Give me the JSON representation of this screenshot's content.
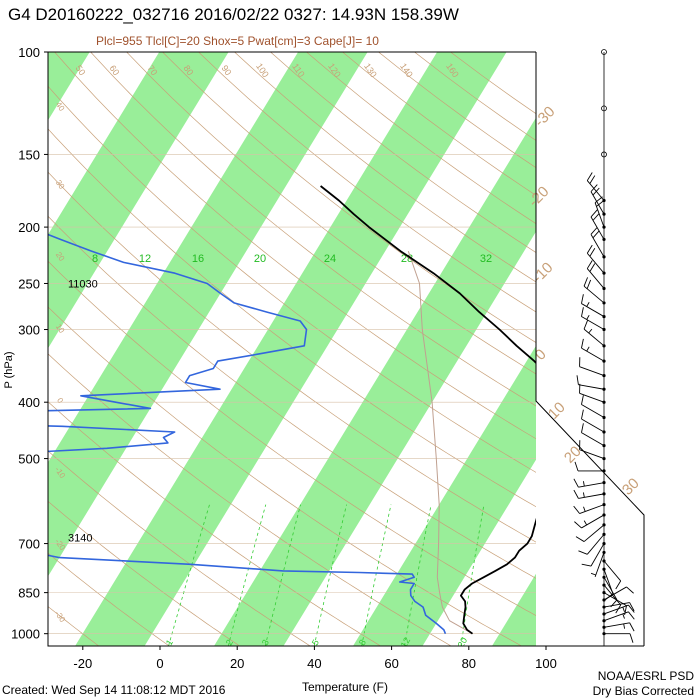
{
  "title": "G4 D20160222_032716 2016/02/22 0327: 14.93N 158.39W",
  "subtitle": "Plcl=955 Tlcl[C]=20 Shox=5 Pwat[cm]=3 Cape[J]= 10",
  "footer": {
    "created": "Created: Wed Sep 14 11:08:12 MDT 2016",
    "credit_line1": "NOAA/ESRL PSD",
    "credit_line2": "Dry Bias Corrected"
  },
  "colors": {
    "temperature": "#000000",
    "dewpoint": "#3366dd",
    "isotherm_band": "#99ee99",
    "dry_adiabat": "#c8a078",
    "mixing_ratio": "#33cc33",
    "parcel": "#c0a090",
    "wind_barb": "#000000"
  },
  "chart_data": {
    "type": "skew-t",
    "xlabel": "Temperature (F)",
    "ylabel": "P (hPa)",
    "x_ticks": [
      "-20",
      "0",
      "20",
      "40",
      "60",
      "80",
      "100"
    ],
    "y_ticks": [
      "100",
      "150",
      "200",
      "250",
      "300",
      "400",
      "500",
      "700",
      "850",
      "1000"
    ],
    "xlim": [
      -29,
      116
    ],
    "ylim": [
      1050,
      100
    ],
    "height_labels": [
      {
        "text": "11030",
        "p": 250
      },
      {
        "text": "3140",
        "p": 700
      }
    ],
    "mixing_ratio_labels": [
      "8",
      "12",
      "16",
      "20",
      "24",
      "28",
      "32"
    ],
    "mixing_ratio_bottom_labels": [
      "1",
      "2",
      "3",
      "5",
      "8",
      "12",
      "20"
    ],
    "dry_adiabat_labels": [
      "50",
      "60",
      "70",
      "80",
      "90",
      "100",
      "110",
      "120",
      "130",
      "140",
      "160",
      "40",
      "30",
      "20",
      "10",
      "0",
      "-10",
      "-20",
      "-30"
    ],
    "isotherm_labels": [
      "-30",
      "-20",
      "-10",
      "0",
      "10",
      "20",
      "30"
    ],
    "temperature": {
      "p": [
        1000,
        985,
        960,
        930,
        900,
        880,
        860,
        840,
        820,
        800,
        780,
        760,
        740,
        720,
        700,
        680,
        650,
        620,
        600,
        560,
        520,
        500,
        480,
        470,
        460,
        450,
        440,
        420,
        400,
        380,
        360,
        340,
        320,
        300,
        280,
        260,
        240,
        220,
        200,
        190,
        180,
        170
      ],
      "f": [
        79,
        77,
        75,
        74,
        73,
        72,
        70,
        70,
        71,
        73,
        75,
        77,
        78,
        78,
        79,
        79,
        78,
        77,
        76,
        75,
        73,
        72,
        70,
        69,
        68,
        67,
        68,
        66,
        64,
        62,
        58,
        52,
        45,
        38,
        30,
        22,
        12,
        0,
        -12,
        -18,
        -24,
        -31
      ]
    },
    "dewpoint": {
      "p": [
        1000,
        985,
        960,
        930,
        900,
        880,
        860,
        840,
        820,
        815,
        800,
        790,
        785,
        780,
        760,
        740,
        700,
        660,
        620,
        600,
        560,
        540,
        520,
        500,
        490,
        480,
        470,
        460,
        450,
        440,
        430,
        425,
        420,
        410,
        400,
        390,
        380,
        370,
        360,
        350,
        340,
        330,
        320,
        300,
        290,
        280,
        270,
        260,
        250,
        240,
        230,
        220,
        210,
        200,
        195,
        190
      ],
      "f": [
        72,
        71,
        68,
        64,
        62,
        59,
        57,
        56,
        56,
        52,
        55,
        54,
        40,
        20,
        -5,
        -40,
        -60,
        -80,
        -100,
        -110,
        -150,
        -200,
        -280,
        -120,
        -70,
        -45,
        -30,
        -32,
        -30,
        -60,
        -120,
        -150,
        -110,
        -40,
        -50,
        -60,
        -25,
        -35,
        -35,
        -30,
        -30,
        -20,
        -10,
        -12,
        -15,
        -25,
        -35,
        -40,
        -45,
        -55,
        -70,
        -80,
        -90,
        -100,
        -110,
        -120
      ]
    },
    "parcel": {
      "p": [
        1000,
        950,
        900,
        850,
        800,
        700,
        600,
        500,
        400,
        300,
        250,
        220
      ],
      "f": [
        79,
        71,
        67,
        64,
        61,
        56,
        50,
        42,
        32,
        18,
        10,
        2
      ]
    },
    "wind": [
      {
        "p": 1000,
        "spd": 10,
        "dir": 90
      },
      {
        "p": 975,
        "spd": 15,
        "dir": 80
      },
      {
        "p": 950,
        "spd": 15,
        "dir": 70
      },
      {
        "p": 925,
        "spd": 15,
        "dir": 70
      },
      {
        "p": 900,
        "spd": 10,
        "dir": 80
      },
      {
        "p": 875,
        "spd": 10,
        "dir": 60
      },
      {
        "p": 850,
        "spd": 10,
        "dir": 120
      },
      {
        "p": 825,
        "spd": 10,
        "dir": 140
      },
      {
        "p": 800,
        "spd": 10,
        "dir": 150
      },
      {
        "p": 775,
        "spd": 10,
        "dir": 160
      },
      {
        "p": 750,
        "spd": 10,
        "dir": 140
      },
      {
        "p": 725,
        "spd": 5,
        "dir": 200
      },
      {
        "p": 700,
        "spd": 10,
        "dir": 210
      },
      {
        "p": 675,
        "spd": 10,
        "dir": 220
      },
      {
        "p": 650,
        "spd": 10,
        "dir": 230
      },
      {
        "p": 625,
        "spd": 15,
        "dir": 240
      },
      {
        "p": 600,
        "spd": 15,
        "dir": 250
      },
      {
        "p": 575,
        "spd": 15,
        "dir": 260
      },
      {
        "p": 550,
        "spd": 15,
        "dir": 260
      },
      {
        "p": 525,
        "spd": 10,
        "dir": 270
      },
      {
        "p": 500,
        "spd": 10,
        "dir": 290
      },
      {
        "p": 475,
        "spd": 10,
        "dir": 300
      },
      {
        "p": 450,
        "spd": 10,
        "dir": 300
      },
      {
        "p": 425,
        "spd": 10,
        "dir": 300
      },
      {
        "p": 400,
        "spd": 10,
        "dir": 290
      },
      {
        "p": 380,
        "spd": 10,
        "dir": 280
      },
      {
        "p": 360,
        "spd": 10,
        "dir": 290
      },
      {
        "p": 340,
        "spd": 15,
        "dir": 300
      },
      {
        "p": 320,
        "spd": 15,
        "dir": 310
      },
      {
        "p": 300,
        "spd": 15,
        "dir": 300
      },
      {
        "p": 285,
        "spd": 15,
        "dir": 300
      },
      {
        "p": 270,
        "spd": 20,
        "dir": 310
      },
      {
        "p": 255,
        "spd": 20,
        "dir": 320
      },
      {
        "p": 240,
        "spd": 20,
        "dir": 320
      },
      {
        "p": 225,
        "spd": 20,
        "dir": 330
      },
      {
        "p": 210,
        "spd": 20,
        "dir": 330
      },
      {
        "p": 200,
        "spd": 20,
        "dir": 340
      },
      {
        "p": 190,
        "spd": 20,
        "dir": 330
      },
      {
        "p": 180,
        "spd": 20,
        "dir": 320
      }
    ],
    "calm_levels": [
      100,
      125,
      150
    ]
  }
}
